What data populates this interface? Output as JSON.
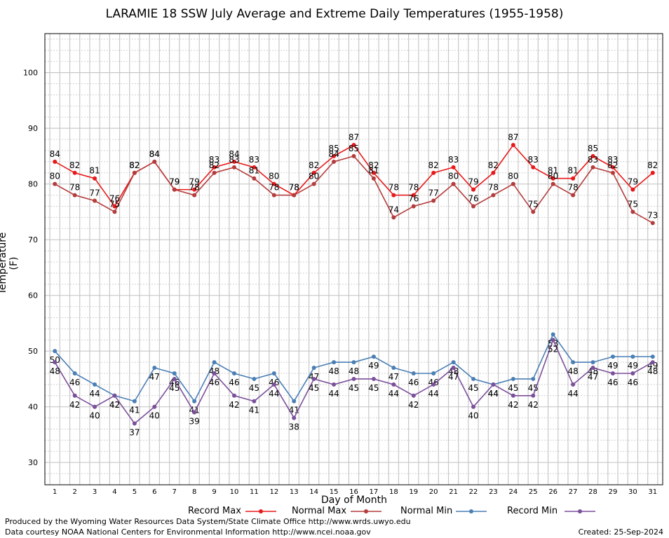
{
  "footer": {
    "produced_by": "Produced by the Wyoming Water Resources Data System/State Climate Office http://www.wrds.uwyo.edu",
    "data_courtesy": "Data courtesy NOAA National Centers for Environmental Information http://www.ncei.noaa.gov",
    "created": "Created:  25-Sep-2024"
  },
  "colors": {
    "record_max": "#e8191a",
    "normal_max": "#b43c3c",
    "normal_min": "#4a7fb5",
    "record_min": "#7b4f9a",
    "grid": "#c8c8c8"
  },
  "chart_data": {
    "type": "line",
    "title": "LARAMIE 18 SSW July Average and Extreme Daily Temperatures (1955-1958)",
    "xlabel": "Day of Month",
    "ylabel": "Temperature (F)",
    "x": [
      1,
      2,
      3,
      4,
      5,
      6,
      7,
      8,
      9,
      10,
      11,
      12,
      13,
      14,
      15,
      16,
      17,
      18,
      19,
      20,
      21,
      22,
      23,
      24,
      25,
      26,
      27,
      28,
      29,
      30,
      31
    ],
    "xlim": [
      0.5,
      31.5
    ],
    "ylim": [
      26,
      107
    ],
    "yticks": [
      30,
      40,
      50,
      60,
      70,
      80,
      90,
      100
    ],
    "grid": true,
    "legend_position": "bottom",
    "series": [
      {
        "name": "Record Max",
        "color": "#e8191a",
        "label_side": "above",
        "values": [
          84,
          82,
          81,
          76,
          82,
          84,
          79,
          79,
          83,
          84,
          83,
          80,
          78,
          82,
          85,
          87,
          82,
          78,
          78,
          82,
          83,
          79,
          82,
          87,
          83,
          81,
          81,
          85,
          83,
          79,
          82
        ]
      },
      {
        "name": "Normal Max",
        "color": "#b43c3c",
        "label_side": "above",
        "values": [
          80,
          78,
          77,
          75,
          82,
          84,
          79,
          78,
          82,
          83,
          81,
          78,
          78,
          80,
          84,
          85,
          81,
          74,
          76,
          77,
          80,
          76,
          78,
          80,
          75,
          80,
          78,
          83,
          82,
          75,
          73
        ]
      },
      {
        "name": "Normal Min",
        "color": "#4a7fb5",
        "label_side": "below",
        "values": [
          50,
          46,
          44,
          42,
          41,
          47,
          46,
          41,
          48,
          46,
          45,
          46,
          41,
          47,
          48,
          48,
          49,
          47,
          46,
          46,
          48,
          45,
          44,
          45,
          45,
          53,
          48,
          48,
          49,
          49,
          49
        ]
      },
      {
        "name": "Record Min",
        "color": "#7b4f9a",
        "label_side": "below",
        "values": [
          48,
          42,
          40,
          42,
          37,
          40,
          45,
          39,
          46,
          42,
          41,
          44,
          38,
          45,
          44,
          45,
          45,
          44,
          42,
          44,
          47,
          40,
          44,
          42,
          42,
          52,
          44,
          47,
          46,
          46,
          48
        ]
      }
    ]
  }
}
